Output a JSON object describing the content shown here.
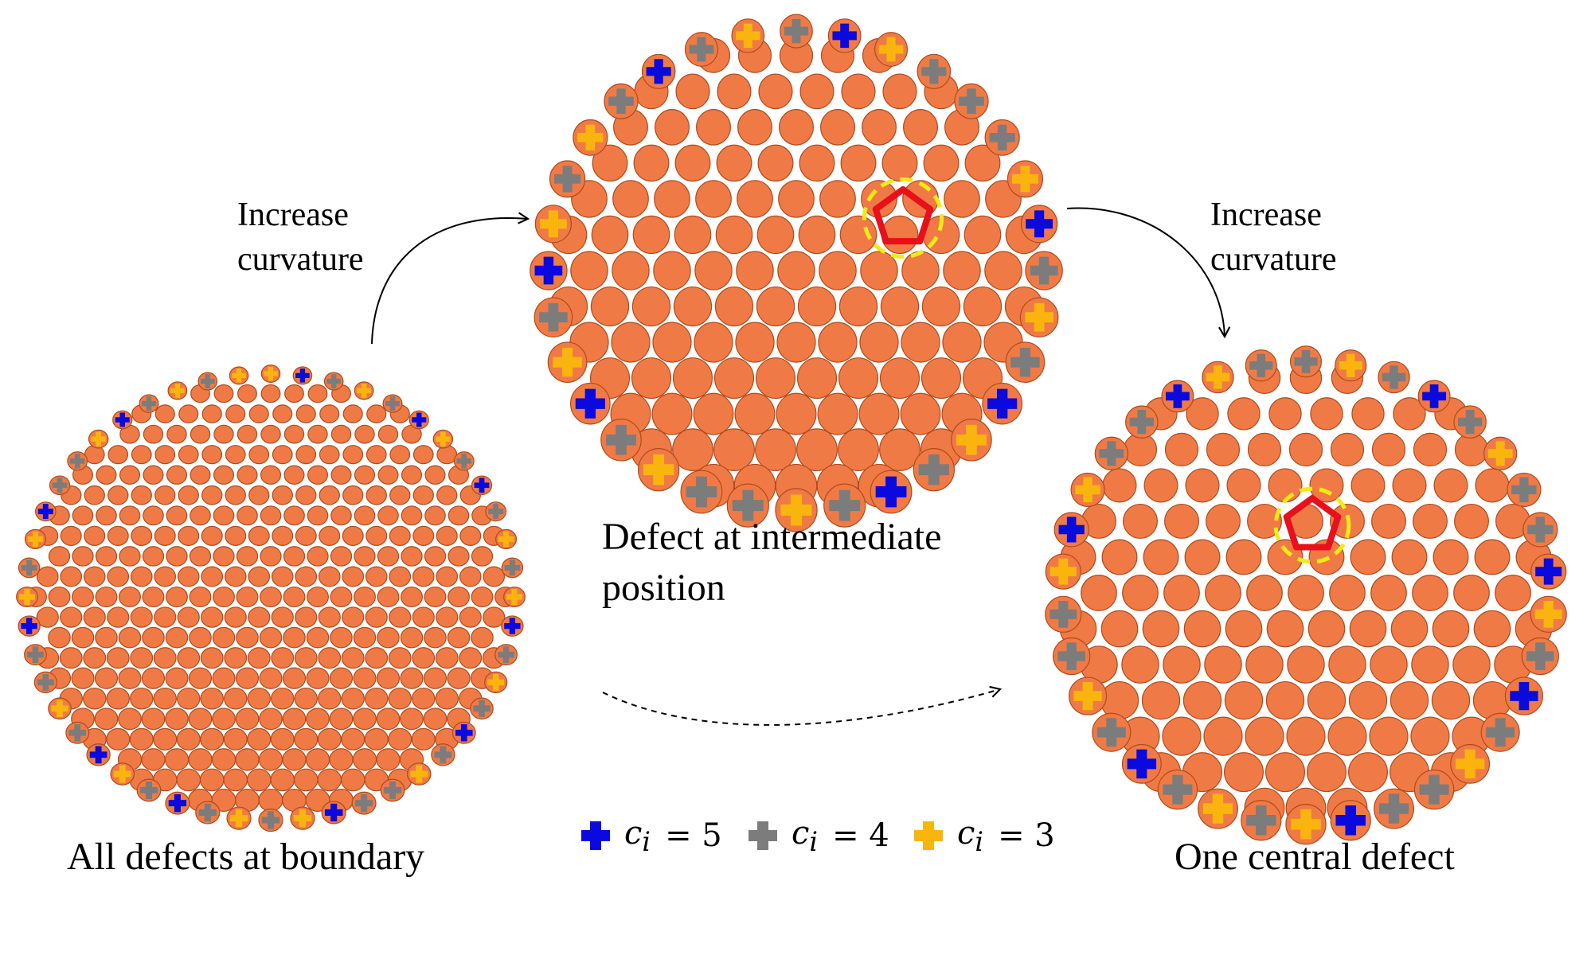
{
  "colors": {
    "particle": "#F07A45",
    "particle_edge": "#B04A1C",
    "defect_5": "#0A0ADF",
    "defect_4": "#7C7C7C",
    "defect_3": "#F9B50E",
    "pentagon": "#E8101A",
    "highlight_ring": "#F2EA14"
  },
  "panels": [
    {
      "id": "left",
      "caption": "All defects at boundary"
    },
    {
      "id": "middle",
      "caption": "Defect at intermediate position"
    },
    {
      "id": "right",
      "caption": "One central defect"
    }
  ],
  "arrows": {
    "left_label": "Increase\ncurvature",
    "right_label": "Increase\ncurvature"
  },
  "legend": [
    {
      "symbol": "c",
      "sub": "i",
      "eq": "= 5",
      "color": "#0A0ADF",
      "icon": "plus-icon"
    },
    {
      "symbol": "c",
      "sub": "i",
      "eq": "= 4",
      "color": "#7C7C7C",
      "icon": "plus-icon"
    },
    {
      "symbol": "c",
      "sub": "i",
      "eq": "= 3",
      "color": "#F9B50E",
      "icon": "plus-icon"
    }
  ]
}
